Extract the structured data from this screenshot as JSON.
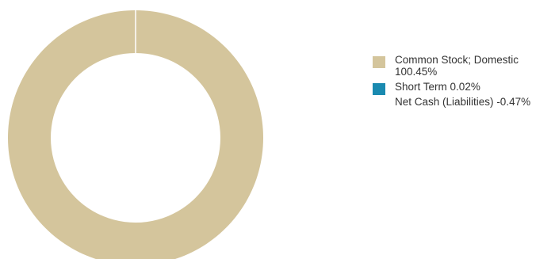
{
  "chart_data": {
    "type": "pie",
    "style": "donut",
    "title": "",
    "series": [
      {
        "label": "Common Stock; Domestic",
        "value_label": "100.45%",
        "value": 100.45,
        "color": "#d4c59c"
      },
      {
        "label": "Short Term",
        "value_label": "0.02%",
        "value": 0.02,
        "color": "#1a8ab0"
      },
      {
        "label": "Net Cash (Liabilities)",
        "value_label": "-0.47%",
        "value": -0.47,
        "color": null
      }
    ],
    "legend_position": "right"
  }
}
